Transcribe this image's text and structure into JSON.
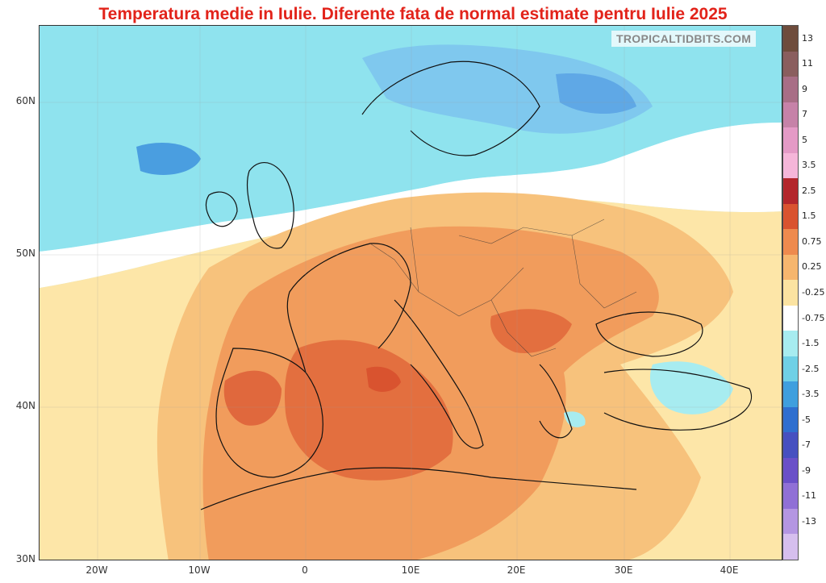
{
  "title": "Temperatura medie in Iulie. Diferente fata de normal estimate pentru Iulie 2025",
  "title_color": "#e2231a",
  "watermark": "TROPICALTIDBITS.COM",
  "axes": {
    "lat_labels": [
      "60N",
      "50N",
      "40N",
      "30N"
    ],
    "lon_labels": [
      "20W",
      "10W",
      "0",
      "10E",
      "20E",
      "30E",
      "40E"
    ]
  },
  "colorbar": {
    "labels": [
      "13",
      "11",
      "9",
      "7",
      "5",
      "3.5",
      "2.5",
      "1.5",
      "0.75",
      "0.25",
      "-0.25",
      "-0.75",
      "-1.5",
      "-2.5",
      "-3.5",
      "-5",
      "-7",
      "-9",
      "-11",
      "-13"
    ],
    "colors": [
      "#6e4c3c",
      "#8a5e5e",
      "#a86e86",
      "#c682a8",
      "#e49ac6",
      "#f5b6d9",
      "#b3262b",
      "#d9532f",
      "#ee8a4e",
      "#f6b66e",
      "#fbe3a1",
      "#ffffff",
      "#a7ecf0",
      "#6fd0e6",
      "#3f9fde",
      "#2f6fcf",
      "#4650c0",
      "#6a50c8",
      "#9070d6",
      "#b496e2",
      "#d6bfee"
    ]
  },
  "palette": {
    "ocean_cool": "#bfeef4",
    "cool": "#7fdbe8",
    "blue": "#4aa0e0",
    "neutral": "#ffffff",
    "light_warm": "#fde6a8",
    "warm": "#f7c27c",
    "warmer": "#f19c5c",
    "hot": "#e36f3f",
    "hottest": "#d9532f"
  }
}
